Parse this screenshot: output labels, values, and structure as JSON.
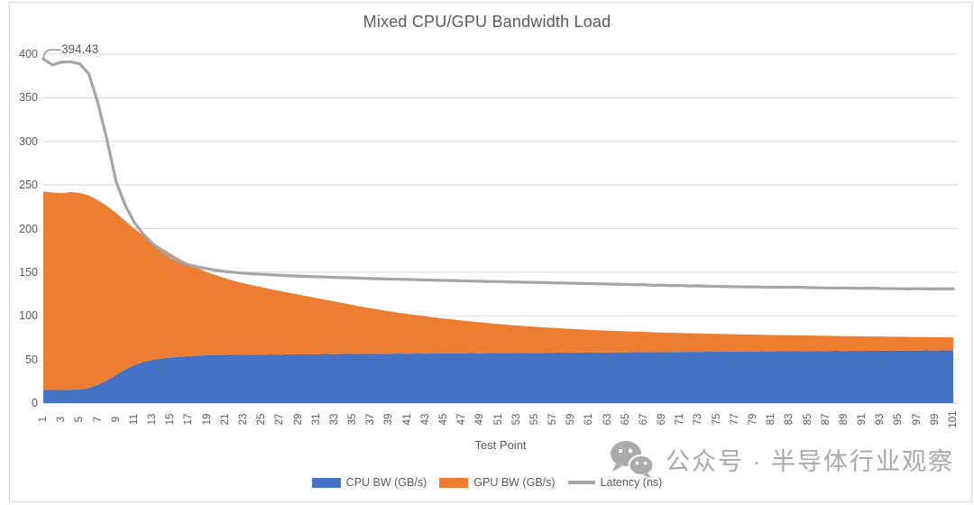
{
  "title": "Mixed CPU/GPU Bandwidth Load",
  "annotation": {
    "text": "394.43"
  },
  "axes": {
    "x_title": "Test Point",
    "y_ticks": [
      0,
      50,
      100,
      150,
      200,
      250,
      300,
      350,
      400
    ],
    "x_tick_labels": [
      1,
      3,
      5,
      7,
      9,
      11,
      13,
      15,
      17,
      19,
      21,
      23,
      25,
      27,
      29,
      31,
      33,
      35,
      37,
      39,
      41,
      43,
      45,
      47,
      49,
      51,
      53,
      55,
      57,
      59,
      61,
      63,
      65,
      67,
      69,
      71,
      73,
      75,
      77,
      79,
      81,
      83,
      85,
      87,
      89,
      91,
      93,
      95,
      97,
      99,
      101
    ]
  },
  "legend": [
    {
      "label": "CPU BW (GB/s)",
      "marker": "rect",
      "color": "#4472C4"
    },
    {
      "label": "GPU BW (GB/s)",
      "marker": "rect",
      "color": "#ED7D31"
    },
    {
      "label": "Latency (ns)",
      "marker": "line",
      "color": "#A6A6A6"
    }
  ],
  "watermark": {
    "text": "公众号 · 半导体行业观察",
    "icon": "wechat-logo",
    "color": "#ABABAB"
  },
  "colors": {
    "cpu": "#4472C4",
    "gpu": "#ED7D31",
    "latency": "#A6A6A6",
    "gridline": "#D9D9D9",
    "axis_line": "#BFBFBF",
    "text": "#595959",
    "border": "#D9D9D9",
    "background": "#FFFFFF",
    "watermark": "#ABABAB"
  },
  "chart_data": {
    "type": "area",
    "stacked": true,
    "title": "Mixed CPU/GPU Bandwidth Load",
    "xlabel": "Test Point",
    "ylabel": "",
    "ylim": [
      0,
      400
    ],
    "y_tick_step": 50,
    "x_tick_step": 2,
    "grid": true,
    "legend_position": "bottom",
    "annotations": [
      {
        "x": 1,
        "y": 394.43,
        "text": "394.43"
      }
    ],
    "x": [
      1,
      2,
      3,
      4,
      5,
      6,
      7,
      8,
      9,
      10,
      11,
      12,
      13,
      14,
      15,
      16,
      17,
      18,
      19,
      20,
      21,
      22,
      23,
      24,
      25,
      26,
      27,
      28,
      29,
      30,
      31,
      32,
      33,
      34,
      35,
      36,
      37,
      38,
      39,
      40,
      41,
      42,
      43,
      44,
      45,
      46,
      47,
      48,
      49,
      50,
      51,
      52,
      53,
      54,
      55,
      56,
      57,
      58,
      59,
      60,
      61,
      62,
      63,
      64,
      65,
      66,
      67,
      68,
      69,
      70,
      71,
      72,
      73,
      74,
      75,
      76,
      77,
      78,
      79,
      80,
      81,
      82,
      83,
      84,
      85,
      86,
      87,
      88,
      89,
      90,
      91,
      92,
      93,
      94,
      95,
      96,
      97,
      98,
      99,
      100,
      101
    ],
    "series": [
      {
        "name": "CPU BW (GB/s)",
        "type": "area",
        "color": "#4472C4",
        "values": [
          15.2,
          15.0,
          15.1,
          15.3,
          15.8,
          17.5,
          21.0,
          26.0,
          32.0,
          38.5,
          43.5,
          47.0,
          49.5,
          51.0,
          52.3,
          53.2,
          53.9,
          54.4,
          54.8,
          55.0,
          55.2,
          55.4,
          55.3,
          55.6,
          55.5,
          55.8,
          55.6,
          56.0,
          55.8,
          56.1,
          56.0,
          56.3,
          56.1,
          56.4,
          56.2,
          56.5,
          56.3,
          56.6,
          56.5,
          56.8,
          56.6,
          56.9,
          56.7,
          57.0,
          56.9,
          57.2,
          57.0,
          57.3,
          57.1,
          57.4,
          57.3,
          57.6,
          57.4,
          57.7,
          57.5,
          57.8,
          57.7,
          58.0,
          57.8,
          58.1,
          57.9,
          58.2,
          58.0,
          58.3,
          58.2,
          58.5,
          58.3,
          58.6,
          58.4,
          58.7,
          58.6,
          58.9,
          58.7,
          59.0,
          58.8,
          59.1,
          59.0,
          59.3,
          59.1,
          59.4,
          59.2,
          59.5,
          59.3,
          59.6,
          59.5,
          59.8,
          59.6,
          59.9,
          59.7,
          60.0,
          59.8,
          60.1,
          59.9,
          60.2,
          60.0,
          60.3,
          60.1,
          60.4,
          60.2,
          60.5,
          60.3
        ]
      },
      {
        "name": "GPU BW (GB/s)",
        "type": "area",
        "color": "#ED7D31",
        "values": [
          227.3,
          226.5,
          225.4,
          226.7,
          225.2,
          220.5,
          211.5,
          200.0,
          186.0,
          170.5,
          156.5,
          145.0,
          135.0,
          126.5,
          118.7,
          111.8,
          105.6,
          100.1,
          95.2,
          91.5,
          87.8,
          84.6,
          82.2,
          79.4,
          77.5,
          74.7,
          72.9,
          70.5,
          68.7,
          66.4,
          64.5,
          62.2,
          60.4,
          58.1,
          56.3,
          54.0,
          52.5,
          50.4,
          48.8,
          46.9,
          45.6,
          43.9,
          42.8,
          41.2,
          40.1,
          38.6,
          37.7,
          36.3,
          35.5,
          34.2,
          33.4,
          32.2,
          31.6,
          30.5,
          30.0,
          29.0,
          28.5,
          27.6,
          27.2,
          26.4,
          26.1,
          25.3,
          25.1,
          24.4,
          24.1,
          23.4,
          23.3,
          22.6,
          22.5,
          21.9,
          21.7,
          21.2,
          21.1,
          20.6,
          20.5,
          20.0,
          19.9,
          19.4,
          19.4,
          18.9,
          18.9,
          18.4,
          18.5,
          18.0,
          17.9,
          17.5,
          17.5,
          17.1,
          17.1,
          16.7,
          16.7,
          16.3,
          16.4,
          15.9,
          16.0,
          15.6,
          15.6,
          15.2,
          15.3,
          14.9,
          15.0
        ]
      },
      {
        "name": "Latency (ns)",
        "type": "line",
        "color": "#A6A6A6",
        "values": [
          394.43,
          387.6,
          390.8,
          391.2,
          389.0,
          377.5,
          344.0,
          302.0,
          254.0,
          227.0,
          207.0,
          193.5,
          183.0,
          174.5,
          167.5,
          162.0,
          158.5,
          156.0,
          154.0,
          152.2,
          150.8,
          149.8,
          148.9,
          148.2,
          147.6,
          147.0,
          146.5,
          146.0,
          145.6,
          145.2,
          144.8,
          144.5,
          144.1,
          143.8,
          143.5,
          143.1,
          142.8,
          142.5,
          142.2,
          141.9,
          141.7,
          141.4,
          141.1,
          140.9,
          140.6,
          140.4,
          140.1,
          139.9,
          139.7,
          139.4,
          139.2,
          139.0,
          138.7,
          138.5,
          138.3,
          138.1,
          137.8,
          137.6,
          137.4,
          137.2,
          137.0,
          136.7,
          136.5,
          136.3,
          136.1,
          135.6,
          135.8,
          135.0,
          135.2,
          134.6,
          134.8,
          134.2,
          134.5,
          134.0,
          133.8,
          133.6,
          133.4,
          133.2,
          133.3,
          133.0,
          132.8,
          132.9,
          132.6,
          132.9,
          132.4,
          132.2,
          132.0,
          131.8,
          132.0,
          131.7,
          131.5,
          131.8,
          131.4,
          131.3,
          131.2,
          130.9,
          131.2,
          131.0,
          130.9,
          131.0,
          130.9
        ]
      }
    ]
  }
}
